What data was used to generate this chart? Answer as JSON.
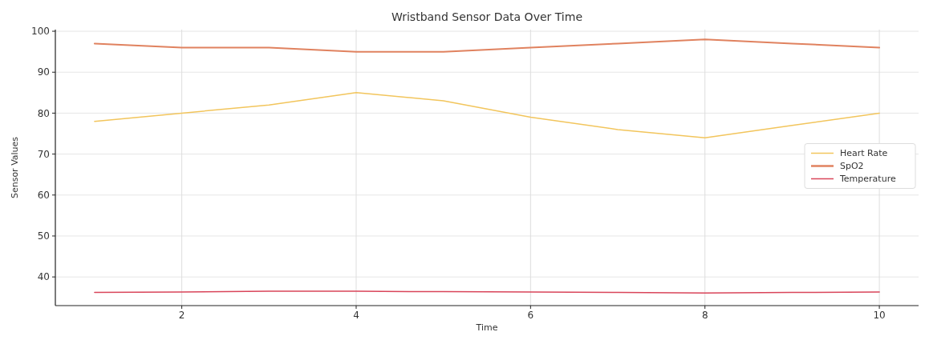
{
  "chart_data": {
    "type": "line",
    "title": "Wristband Sensor Data Over Time",
    "xlabel": "Time",
    "ylabel": "Sensor Values",
    "x": [
      1,
      2,
      3,
      4,
      5,
      6,
      7,
      8,
      9,
      10
    ],
    "series": [
      {
        "name": "Heart Rate",
        "color": "#f2c55c",
        "values": [
          78,
          80,
          82,
          85,
          83,
          79,
          76,
          74,
          77,
          80
        ]
      },
      {
        "name": "SpO2",
        "color": "#e0825f",
        "values": [
          97,
          96,
          96,
          95,
          95,
          96,
          97,
          98,
          97,
          96
        ]
      },
      {
        "name": "Temperature",
        "color": "#d9455a",
        "values": [
          36.2,
          36.3,
          36.5,
          36.5,
          36.4,
          36.3,
          36.2,
          36.1,
          36.2,
          36.3
        ]
      }
    ],
    "xlim": [
      0.55,
      10.45
    ],
    "xticks": [
      2,
      4,
      6,
      8,
      10
    ],
    "ylim": [
      33,
      100.4
    ],
    "yticks": [
      40,
      50,
      60,
      70,
      80,
      90,
      100
    ],
    "grid": true,
    "legend": "right",
    "line_style": "solid"
  }
}
